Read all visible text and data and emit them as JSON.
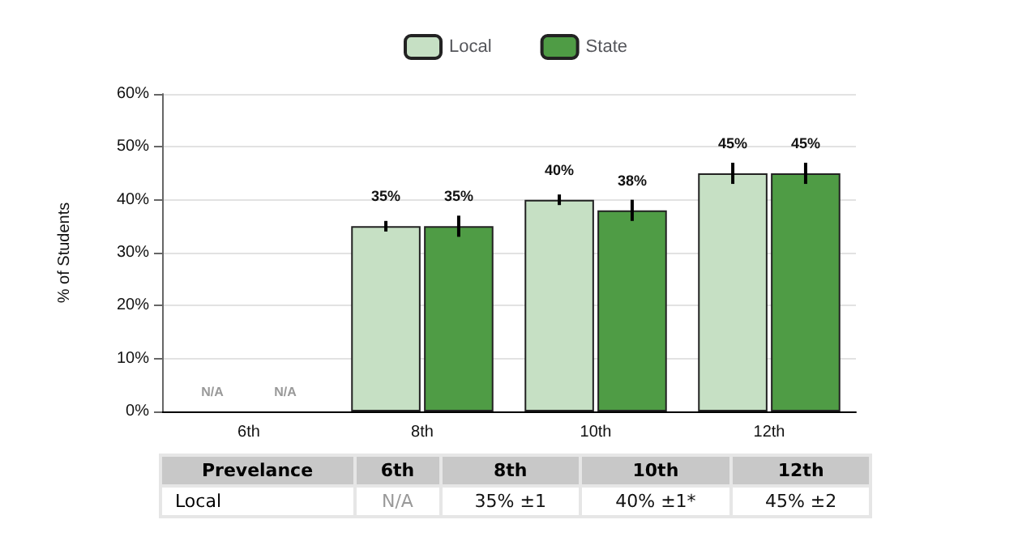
{
  "chart_data": {
    "type": "bar",
    "ylabel": "% of Students",
    "categories": [
      "6th",
      "8th",
      "10th",
      "12th"
    ],
    "series": [
      {
        "name": "Local",
        "color": "#c6e0c4",
        "values": [
          null,
          35,
          40,
          45
        ],
        "errors": [
          null,
          1,
          1,
          2
        ],
        "value_labels": [
          "N/A",
          "35%",
          "40%",
          "45%"
        ]
      },
      {
        "name": "State",
        "color": "#4f9c45",
        "values": [
          null,
          35,
          38,
          45
        ],
        "errors": [
          null,
          2,
          2,
          2
        ],
        "value_labels": [
          "N/A",
          "35%",
          "38%",
          "45%"
        ]
      }
    ],
    "ylim": [
      0,
      60
    ],
    "yticks": [
      {
        "value": 0,
        "label": "0%"
      },
      {
        "value": 10,
        "label": "10%"
      },
      {
        "value": 20,
        "label": "20%"
      },
      {
        "value": 30,
        "label": "30%"
      },
      {
        "value": 40,
        "label": "40%"
      },
      {
        "value": 50,
        "label": "50%"
      },
      {
        "value": 60,
        "label": "60%"
      }
    ],
    "grid": "y",
    "legend": "top",
    "annotations": [
      "Prevelance",
      "Local",
      "N/A",
      "35% ±1",
      "40% ±1*",
      "45% ±2"
    ]
  }
}
